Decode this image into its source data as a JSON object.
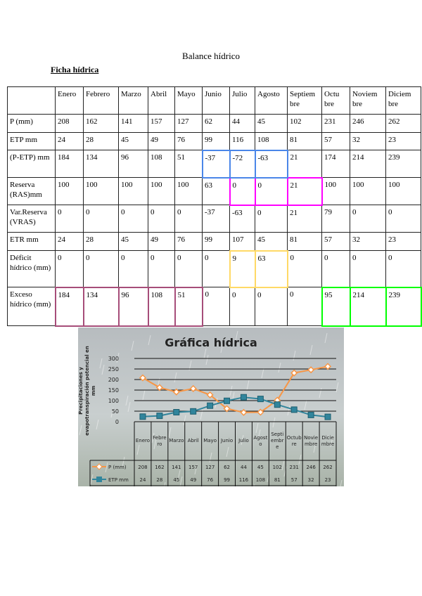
{
  "document": {
    "title": "Balance hídrico",
    "subtitle": "Ficha hídrica"
  },
  "table": {
    "headers": [
      "",
      "Enero",
      "Febrero",
      "Marzo",
      "Abril",
      "Mayo",
      "Junio",
      "Julio",
      "Agosto",
      "Septiem bre",
      "Octu bre",
      "Noviem bre",
      "Diciem bre"
    ],
    "rows": [
      {
        "label": "P (mm)",
        "values": [
          "208",
          "162",
          "141",
          "157",
          "127",
          "62",
          "44",
          "45",
          "102",
          "231",
          "246",
          "262"
        ]
      },
      {
        "label": "ETP mm",
        "values": [
          "24",
          "28",
          "45",
          "49",
          "76",
          "99",
          "116",
          "108",
          "81",
          "57",
          "32",
          "23"
        ]
      },
      {
        "label": "(P-ETP) mm",
        "values": [
          "184",
          "134",
          "96",
          "108",
          "51",
          "-37",
          "-72",
          "-63",
          "21",
          "174",
          "214",
          "239"
        ],
        "highlight": {
          "color": "#4a86e8",
          "months": [
            5,
            6,
            7
          ]
        }
      },
      {
        "label": "Reserva (RAS)mm",
        "values": [
          "100",
          "100",
          "100",
          "100",
          "100",
          "63",
          "0",
          "0",
          "21",
          "100",
          "100",
          "100"
        ],
        "highlight": {
          "color": "#ff00ff",
          "months": [
            6,
            7,
            8
          ]
        }
      },
      {
        "label": "Var.Reserva (VRAS)",
        "values": [
          "0",
          "0",
          "0",
          "0",
          "0",
          "-37",
          "-63",
          "0",
          "21",
          "79",
          "0",
          "0"
        ]
      },
      {
        "label": "ETR mm",
        "values": [
          "24",
          "28",
          "45",
          "49",
          "76",
          "99",
          "107",
          "45",
          "81",
          "57",
          "32",
          "23"
        ]
      },
      {
        "label": "Déficit hídrico (mm)",
        "values": [
          "0",
          "0",
          "0",
          "0",
          "0",
          "0",
          "9",
          "63",
          "0",
          "0",
          "0",
          "0"
        ],
        "highlight": {
          "color": "#ffd966",
          "months": [
            6,
            7
          ]
        }
      },
      {
        "label": "Exceso hídrico (mm)",
        "values": [
          "184",
          "134",
          "96",
          "108",
          "51",
          "0",
          "0",
          "0",
          "0",
          "95",
          "214",
          "239"
        ],
        "highlights": [
          {
            "color": "#a64d79",
            "months": [
              0,
              1,
              2,
              3,
              4
            ]
          },
          {
            "color": "#00ff00",
            "months": [
              9,
              10,
              11
            ]
          }
        ]
      }
    ]
  },
  "chart_data": {
    "type": "line",
    "title": "Gráfica hídrica",
    "ylabel": "Precipitaciones y evapotranspiración potencial en mm",
    "ylim": [
      0,
      300
    ],
    "yticks": [
      "0",
      "50",
      "100",
      "150",
      "200",
      "250",
      "300"
    ],
    "grid": true,
    "categories": [
      "Enero",
      "Febrero",
      "Marzo",
      "Abril",
      "Mayo",
      "Junio",
      "Julio",
      "Agosto",
      "Septiembre",
      "Octubre",
      "Noviembre",
      "Diciembre"
    ],
    "series": [
      {
        "name": "P (mm)",
        "values": [
          208,
          162,
          141,
          157,
          127,
          62,
          44,
          45,
          102,
          231,
          246,
          262
        ],
        "color": "#f79646",
        "marker": "diamond"
      },
      {
        "name": "ETP mm",
        "values": [
          24,
          28,
          45,
          49,
          76,
          99,
          116,
          108,
          81,
          57,
          32,
          23
        ],
        "color": "#31859c",
        "marker": "square"
      }
    ],
    "legend": "data-table-left"
  }
}
